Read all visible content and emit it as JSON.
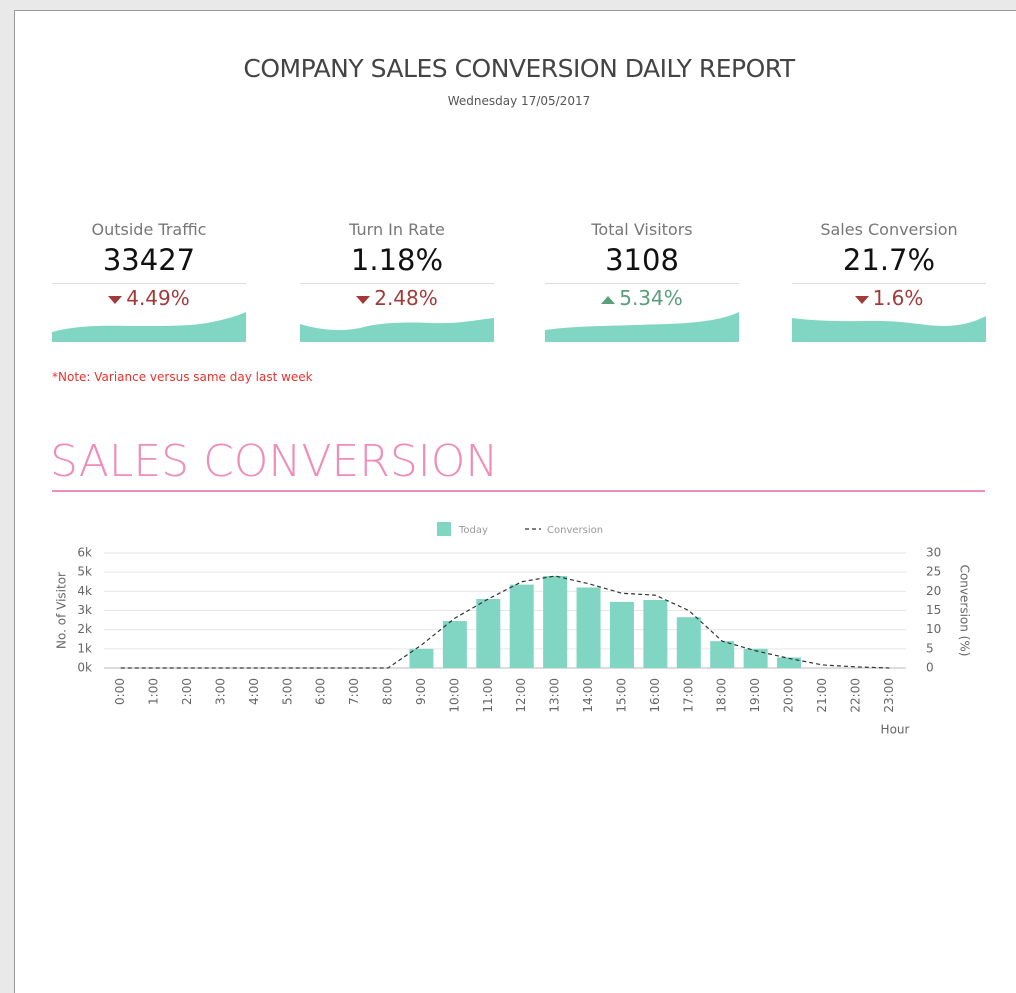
{
  "header": {
    "title": "COMPANY SALES CONVERSION DAILY REPORT",
    "subtitle": "Wednesday 17/05/2017"
  },
  "kpis": [
    {
      "label": "Outside Traffic",
      "value": "33427",
      "variance": "4.49%"
    },
    {
      "label": "Turn In Rate",
      "value": "1.18%",
      "variance": "2.48%"
    },
    {
      "label": "Total Visitors",
      "value": "3108",
      "variance": "5.34%"
    },
    {
      "label": "Sales Conversion",
      "value": "21.7%",
      "variance": "1.6%"
    }
  ],
  "note": "*Note: Variance versus same day last week",
  "section_title": "SALES CONVERSION",
  "chart_data": {
    "type": "bar",
    "x_label": "Hour",
    "y_label": "No. of Visitor",
    "y2_label": "Conversion (%)",
    "categories": [
      "0:00",
      "1:00",
      "2:00",
      "3:00",
      "4:00",
      "5:00",
      "6:00",
      "7:00",
      "8:00",
      "9:00",
      "10:00",
      "11:00",
      "12:00",
      "13:00",
      "14:00",
      "15:00",
      "16:00",
      "17:00",
      "18:00",
      "19:00",
      "20:00",
      "21:00",
      "22:00",
      "23:00"
    ],
    "series": [
      {
        "name": "Today",
        "color": "#80d6c3",
        "values": [
          0,
          0,
          0,
          0,
          0,
          0,
          0,
          0,
          0,
          1000,
          2450,
          3600,
          4350,
          4800,
          4200,
          3450,
          3550,
          2650,
          1400,
          1000,
          550,
          0,
          0,
          0
        ]
      },
      {
        "name": "Conversion",
        "color": "#333333",
        "type": "line",
        "axis": "y2",
        "values": [
          0,
          0,
          0,
          0,
          0,
          0,
          0,
          0,
          0,
          6,
          13,
          18,
          22.5,
          24,
          22,
          19.5,
          19,
          15,
          7,
          4.5,
          2.5,
          0.8,
          0.3,
          0
        ]
      }
    ],
    "ylim": [
      0,
      6000
    ],
    "yticks": [
      {
        "value": 0,
        "label": "0k"
      },
      {
        "value": 1000,
        "label": "1k"
      },
      {
        "value": 2000,
        "label": "2k"
      },
      {
        "value": 3000,
        "label": "3k"
      },
      {
        "value": 4000,
        "label": "4k"
      },
      {
        "value": 5000,
        "label": "5k"
      },
      {
        "value": 6000,
        "label": "6k"
      }
    ],
    "y2lim": [
      0,
      30
    ],
    "y2ticks": [
      0,
      5,
      10,
      15,
      20,
      25,
      30
    ],
    "grid": true
  }
}
